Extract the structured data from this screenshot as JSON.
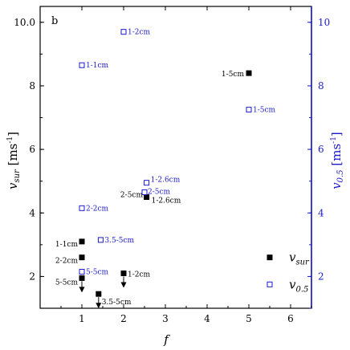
{
  "chart_data": {
    "type": "scatter",
    "panel_label": "b",
    "xlabel": "f",
    "ylabel_left": {
      "main": "v",
      "sub": "sur",
      "unit": "[ms",
      "exp": "-1",
      "close": "]"
    },
    "ylabel_right": {
      "main": "v",
      "sub": "0.5",
      "unit": "[ms",
      "exp": "-1",
      "close": "]"
    },
    "xlim": [
      0,
      6.5
    ],
    "ylim_left": [
      1.0,
      10.5
    ],
    "ylim_right": [
      1.0,
      10.5
    ],
    "x_ticks": [
      {
        "v": 1,
        "label": "1"
      },
      {
        "v": 2,
        "label": "2"
      },
      {
        "v": 3,
        "label": "3"
      },
      {
        "v": 4,
        "label": "4"
      },
      {
        "v": 5,
        "label": "5"
      },
      {
        "v": 6,
        "label": "6"
      }
    ],
    "y_ticks_left": [
      {
        "v": 2,
        "label": "2"
      },
      {
        "v": 4,
        "label": "4"
      },
      {
        "v": 6,
        "label": "6"
      },
      {
        "v": 8,
        "label": "8"
      },
      {
        "v": 10,
        "label": "10.0"
      }
    ],
    "y_ticks_right": [
      {
        "v": 2,
        "label": "2"
      },
      {
        "v": 4,
        "label": "4"
      },
      {
        "v": 6,
        "label": "6"
      },
      {
        "v": 8,
        "label": "8"
      },
      {
        "v": 10,
        "label": "10"
      }
    ],
    "colors": {
      "left_axis": "#000000",
      "right_axis": "#1a1acc",
      "sur": "#000000",
      "half": "#1a1acc"
    },
    "series": [
      {
        "name": "v_sur",
        "legend_main": "v",
        "legend_sub": "sur",
        "marker": "filled-square",
        "points": [
          {
            "x": 5.0,
            "y": 8.4,
            "label": "1-5cm"
          },
          {
            "x": 2.55,
            "y": 4.5,
            "label": "1-2.6cm"
          },
          {
            "x": 1.0,
            "y": 3.1,
            "label": "1-1cm"
          },
          {
            "x": 1.0,
            "y": 2.6,
            "label": "2-2cm"
          },
          {
            "x": 1.0,
            "y": 1.95,
            "label": "5-5cm"
          },
          {
            "x": 2.0,
            "y": 2.1,
            "label": "1-2cm"
          },
          {
            "x": 1.4,
            "y": 1.45,
            "label": "3.5-5cm"
          }
        ],
        "arrows": [
          {
            "x": 1.0,
            "y_from": 1.95
          },
          {
            "x": 2.0,
            "y_from": 2.1
          },
          {
            "x": 1.4,
            "y_from": 1.45
          }
        ]
      },
      {
        "name": "v_0.5",
        "legend_main": "v",
        "legend_sub": "0.5",
        "marker": "open-square",
        "points": [
          {
            "x": 2.0,
            "y": 9.7,
            "label": "1-2cm"
          },
          {
            "x": 1.0,
            "y": 8.65,
            "label": "1-1cm"
          },
          {
            "x": 5.0,
            "y": 7.25,
            "label": "1-5cm"
          },
          {
            "x": 2.55,
            "y": 4.95,
            "label": "1-2.6cm"
          },
          {
            "x": 2.5,
            "y": 4.65,
            "label": "2-5cm"
          },
          {
            "x": 1.0,
            "y": 4.15,
            "label": "2-2cm"
          },
          {
            "x": 1.45,
            "y": 3.15,
            "label": "3.5-5cm"
          },
          {
            "x": 1.0,
            "y": 2.15,
            "label": "5-5cm"
          }
        ]
      }
    ],
    "side_labels": [
      {
        "text": "2-5cm",
        "x": 2.5,
        "y": 4.6
      }
    ],
    "legend_position": "bottom-right",
    "grid": false
  }
}
